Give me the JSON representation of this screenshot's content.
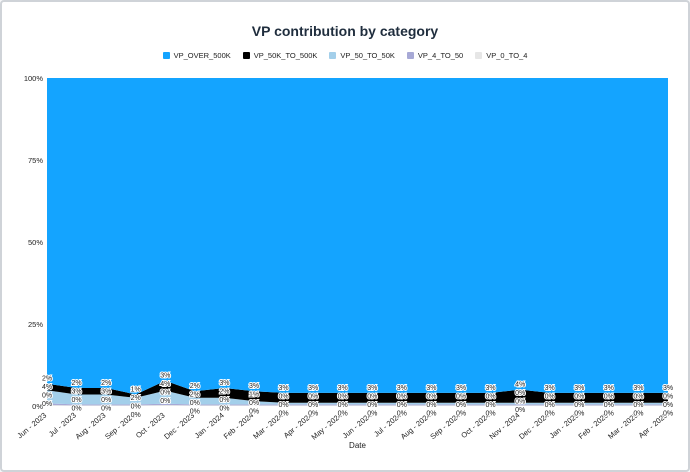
{
  "chart_data": {
    "type": "area",
    "title": "VP contribution by category",
    "xlabel": "Date",
    "ylabel": "",
    "stacked": "percent",
    "ylim": [
      0,
      100
    ],
    "yticks": [
      "0%",
      "25%",
      "50%",
      "75%",
      "100%"
    ],
    "legend_position": "top",
    "categories": [
      "Jun - 2023",
      "Jul - 2023",
      "Aug - 2023",
      "Sep - 2023",
      "Oct - 2023",
      "Dec - 2023",
      "Jan - 2024",
      "Feb - 2024",
      "Mar - 2024",
      "Apr - 2024",
      "May - 2024",
      "Jun - 2024",
      "Jul - 2024",
      "Aug - 2024",
      "Sep - 2024",
      "Oct - 2024",
      "Nov - 2024",
      "Dec - 2024",
      "Jan - 2025",
      "Feb - 2025",
      "Mar - 2025",
      "Apr - 2025"
    ],
    "series": [
      {
        "name": "VP_0_TO_4",
        "color": "#e6e6e6",
        "values": [
          0.3,
          0.2,
          0.2,
          0.2,
          0.3,
          0.2,
          0.2,
          0.2,
          0.2,
          0.2,
          0.2,
          0.2,
          0.2,
          0.2,
          0.2,
          0.2,
          0.2,
          0.2,
          0.2,
          0.2,
          0.2,
          0.2
        ]
      },
      {
        "name": "VP_4_TO_50",
        "color": "#a7a9d6",
        "values": [
          0.5,
          0.3,
          0.3,
          0.3,
          0.4,
          0.3,
          0.3,
          0.3,
          0.3,
          0.3,
          0.3,
          0.3,
          0.3,
          0.3,
          0.3,
          0.3,
          0.3,
          0.3,
          0.3,
          0.3,
          0.3,
          0.3
        ]
      },
      {
        "name": "VP_50_TO_50K",
        "color": "#a3cfea",
        "values": [
          4,
          3,
          3,
          2,
          4,
          2,
          2,
          1,
          0.5,
          0.5,
          0.5,
          0.5,
          0.5,
          0.5,
          0.5,
          0.5,
          0.5,
          0.5,
          0.5,
          0.5,
          0.5,
          0.5
        ]
      },
      {
        "name": "VP_50K_TO_500K",
        "color": "#000000",
        "values": [
          2,
          2,
          2,
          1,
          3,
          2,
          3,
          3,
          3,
          3,
          3,
          3,
          3,
          3,
          3,
          3,
          4,
          3,
          3,
          3,
          3,
          3
        ]
      },
      {
        "name": "VP_OVER_500K",
        "color": "#14a4ff",
        "values": [
          93.2,
          94.5,
          94.5,
          96.5,
          92.3,
          95.5,
          94.5,
          95.5,
          96,
          96,
          96,
          96,
          96,
          96,
          96,
          96,
          95,
          96,
          96,
          96,
          96,
          96
        ]
      }
    ],
    "data_labels": {
      "VP_50K_TO_500K": [
        "2%",
        "2%",
        "2%",
        "1%",
        "3%",
        "2%",
        "3%",
        "3%",
        "3%",
        "3%",
        "3%",
        "3%",
        "3%",
        "3%",
        "3%",
        "3%",
        "4%",
        "3%",
        "3%",
        "3%",
        "3%",
        "3%"
      ],
      "VP_50_TO_50K": [
        "4%",
        "3%",
        "3%",
        "2%",
        "4%",
        "2%",
        "2%",
        "1%",
        "0%",
        "0%",
        "0%",
        "0%",
        "0%",
        "0%",
        "0%",
        "0%",
        "0%",
        "0%",
        "0%",
        "0%",
        "0%",
        "0%"
      ],
      "VP_4_TO_50": [
        "0%",
        "0%",
        "0%",
        "0%",
        "0%",
        "0%",
        "0%",
        "0%",
        "0%",
        "0%",
        "0%",
        "0%",
        "0%",
        "0%",
        "0%",
        "0%",
        "0%",
        "0%",
        "0%",
        "0%",
        "0%",
        "0%"
      ],
      "VP_0_TO_4": [
        "0%",
        "0%",
        "0%",
        "0%",
        "0%",
        "0%",
        "0%",
        "0%",
        "0%",
        "0%",
        "0%",
        "0%",
        "0%",
        "0%",
        "0%",
        "0%",
        "0%",
        "0%",
        "0%",
        "0%",
        "0%",
        "0%"
      ]
    },
    "legend": [
      "VP_OVER_500K",
      "VP_50K_TO_500K",
      "VP_50_TO_50K",
      "VP_4_TO_50",
      "VP_0_TO_4"
    ],
    "grid": false
  }
}
